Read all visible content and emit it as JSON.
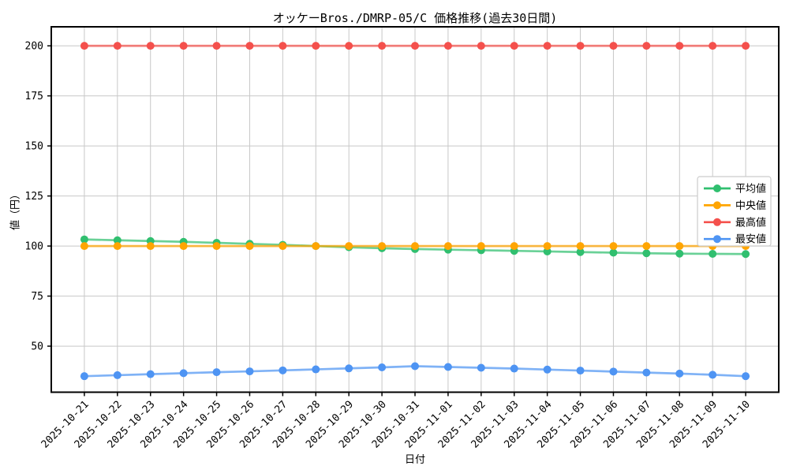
{
  "chart_data": {
    "type": "line",
    "title": "オッケーBros./DMRP-05/C 価格推移(過去30日間)",
    "xlabel": "日付",
    "ylabel": "値（円）",
    "categories": [
      "2025-10-21",
      "2025-10-22",
      "2025-10-23",
      "2025-10-24",
      "2025-10-25",
      "2025-10-26",
      "2025-10-27",
      "2025-10-28",
      "2025-10-29",
      "2025-10-30",
      "2025-10-31",
      "2025-11-01",
      "2025-11-02",
      "2025-11-03",
      "2025-11-04",
      "2025-11-05",
      "2025-11-06",
      "2025-11-07",
      "2025-11-08",
      "2025-11-09",
      "2025-11-10"
    ],
    "series": [
      {
        "key": "average",
        "name": "平均値",
        "color": "#30bf6f",
        "values": [
          103.3,
          102.9,
          102.5,
          102.1,
          101.6,
          101.1,
          100.6,
          100.0,
          99.4,
          98.9,
          98.5,
          98.2,
          97.9,
          97.6,
          97.3,
          97.0,
          96.7,
          96.4,
          96.2,
          96.1,
          96.0
        ]
      },
      {
        "key": "median",
        "name": "中央値",
        "color": "#ffa502",
        "values": [
          100,
          100,
          100,
          100,
          100,
          100,
          100,
          100,
          100,
          100,
          100,
          100,
          100,
          100,
          100,
          100,
          100,
          100,
          100,
          100,
          100
        ]
      },
      {
        "key": "max",
        "name": "最高値",
        "color": "#f4504c",
        "values": [
          200,
          200,
          200,
          200,
          200,
          200,
          200,
          200,
          200,
          200,
          200,
          200,
          200,
          200,
          200,
          200,
          200,
          200,
          200,
          200,
          200
        ]
      },
      {
        "key": "min",
        "name": "最安値",
        "color": "#4e94f3",
        "values": [
          35,
          35.5,
          36,
          36.5,
          37,
          37.4,
          37.9,
          38.4,
          38.9,
          39.4,
          40,
          39.6,
          39.2,
          38.8,
          38.3,
          37.8,
          37.3,
          36.8,
          36.3,
          35.7,
          35
        ]
      }
    ],
    "yticks": [
      50,
      75,
      100,
      125,
      150,
      175,
      200
    ],
    "ylim": [
      27,
      209.5
    ],
    "grid": true,
    "legend_position": "center-right",
    "grid_color": "#c8c8c8",
    "spine_color": "#000000",
    "legend_border_color": "#cccccc"
  }
}
